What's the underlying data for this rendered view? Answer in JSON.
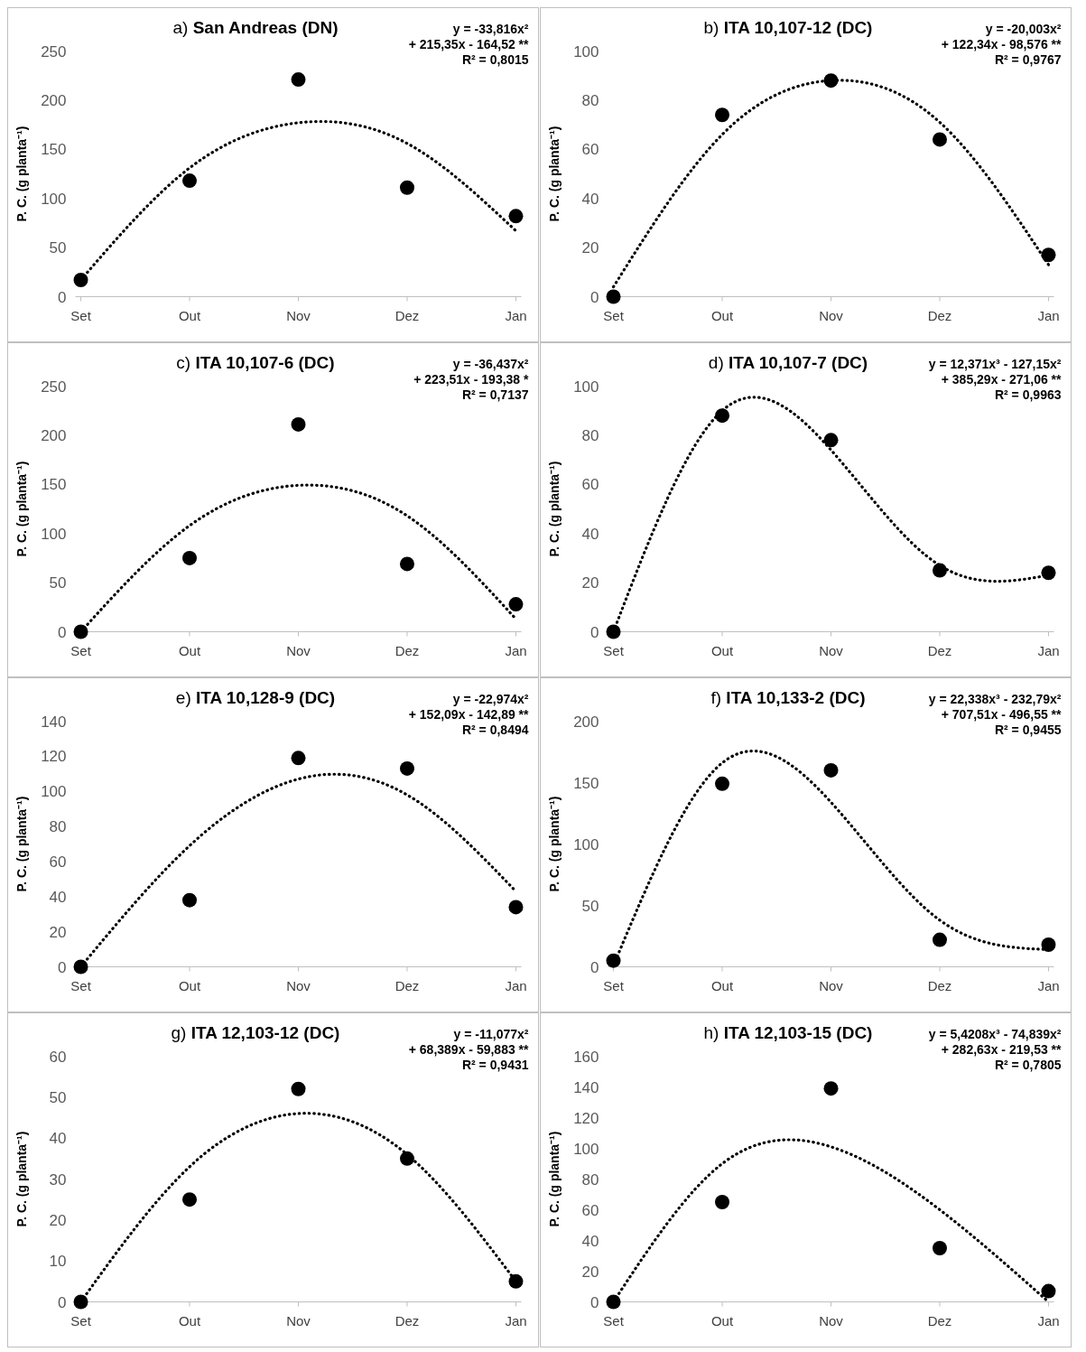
{
  "chart_data": [
    {
      "type": "scatter",
      "title": "a) San Andreas (DN)",
      "ylabel": "P. C. (g planta⁻¹)",
      "categories": [
        "Set",
        "Out",
        "Nov",
        "Dez",
        "Jan"
      ],
      "ylim": [
        0,
        250
      ],
      "yticks": [
        0,
        50,
        100,
        150,
        200,
        250
      ],
      "marker": "circle",
      "annotations": [
        "y = -33,816x²",
        "+ 215,35x - 164,52 **",
        "R² = 0,8015"
      ],
      "series": [
        {
          "type": "scatter",
          "color": "#000000",
          "values": [
            17,
            118,
            221,
            111,
            82
          ]
        },
        {
          "type": "line",
          "color": "#000000",
          "line_style": "dotted",
          "marker": "none",
          "values": [
            17,
            131,
            177,
            156,
            67
          ]
        }
      ]
    },
    {
      "type": "scatter",
      "title": "b) ITA 10,107-12 (DC)",
      "ylabel": "P. C. (g planta⁻¹)",
      "categories": [
        "Set",
        "Out",
        "Nov",
        "Dez",
        "Jan"
      ],
      "ylim": [
        0,
        100
      ],
      "yticks": [
        0,
        20,
        40,
        60,
        80,
        100
      ],
      "marker": "circle",
      "annotations": [
        "y = -20,003x²",
        "+ 122,34x - 98,576 **",
        "R² = 0,9767"
      ],
      "series": [
        {
          "type": "scatter",
          "color": "#000000",
          "values": [
            0,
            74,
            88,
            64,
            17
          ]
        },
        {
          "type": "line",
          "color": "#000000",
          "line_style": "dotted",
          "marker": "none",
          "values": [
            4,
            66,
            88,
            71,
            13
          ]
        }
      ]
    },
    {
      "type": "scatter",
      "title": "c) ITA 10,107-6 (DC)",
      "ylabel": "P. C. (g planta⁻¹)",
      "categories": [
        "Set",
        "Out",
        "Nov",
        "Dez",
        "Jan"
      ],
      "ylim": [
        0,
        250
      ],
      "yticks": [
        0,
        50,
        100,
        150,
        200,
        250
      ],
      "marker": "circle",
      "annotations": [
        "y = -36,437x²",
        "+ 223,51x - 193,38 *",
        "R² = 0,7137"
      ],
      "series": [
        {
          "type": "scatter",
          "color": "#000000",
          "values": [
            0,
            75,
            211,
            69,
            28
          ]
        },
        {
          "type": "line",
          "color": "#000000",
          "line_style": "dotted",
          "marker": "none",
          "values": [
            0,
            108,
            149,
            118,
            13
          ]
        }
      ]
    },
    {
      "type": "scatter",
      "title": "d) ITA 10,107-7 (DC)",
      "ylabel": "P. C. (g planta⁻¹)",
      "categories": [
        "Set",
        "Out",
        "Nov",
        "Dez",
        "Jan"
      ],
      "ylim": [
        0,
        100
      ],
      "yticks": [
        0,
        20,
        40,
        60,
        80,
        100
      ],
      "marker": "circle",
      "annotations": [
        "y = 12,371x³ - 127,15x²",
        "+ 385,29x - 271,06 **",
        "R² = 0,9963"
      ],
      "series": [
        {
          "type": "scatter",
          "color": "#000000",
          "values": [
            0,
            88,
            78,
            25,
            24
          ]
        },
        {
          "type": "line",
          "color": "#000000",
          "line_style": "dotted",
          "marker": "none",
          "values": [
            0,
            90,
            74,
            27,
            23
          ]
        }
      ]
    },
    {
      "type": "scatter",
      "title": "e) ITA 10,128-9 (DC)",
      "ylabel": "P. C. (g planta⁻¹)",
      "categories": [
        "Set",
        "Out",
        "Nov",
        "Dez",
        "Jan"
      ],
      "ylim": [
        0,
        140
      ],
      "yticks": [
        0,
        20,
        40,
        60,
        80,
        100,
        120,
        140
      ],
      "marker": "circle",
      "annotations": [
        "y = -22,974x²",
        "+ 152,09x - 142,89 **",
        "R² = 0,8494"
      ],
      "series": [
        {
          "type": "scatter",
          "color": "#000000",
          "values": [
            0,
            38,
            119,
            113,
            34
          ]
        },
        {
          "type": "line",
          "color": "#000000",
          "line_style": "dotted",
          "marker": "none",
          "values": [
            0,
            69,
            107,
            98,
            43
          ]
        }
      ]
    },
    {
      "type": "scatter",
      "title": "f) ITA 10,133-2 (DC)",
      "ylabel": "P. C. (g planta⁻¹)",
      "categories": [
        "Set",
        "Out",
        "Nov",
        "Dez",
        "Jan"
      ],
      "ylim": [
        0,
        200
      ],
      "yticks": [
        0,
        50,
        100,
        150,
        200
      ],
      "marker": "circle",
      "annotations": [
        "y = 22,338x³ - 232,79x²",
        "+ 707,51x - 496,55 **",
        "R² = 0,9455"
      ],
      "series": [
        {
          "type": "scatter",
          "color": "#000000",
          "values": [
            5,
            149,
            160,
            22,
            18
          ]
        },
        {
          "type": "line",
          "color": "#000000",
          "line_style": "dotted",
          "marker": "none",
          "values": [
            1,
            166,
            134,
            38,
            14
          ]
        }
      ]
    },
    {
      "type": "scatter",
      "title": "g) ITA 12,103-12 (DC)",
      "ylabel": "P. C. (g planta⁻¹)",
      "categories": [
        "Set",
        "Out",
        "Nov",
        "Dez",
        "Jan"
      ],
      "ylim": [
        0,
        60
      ],
      "yticks": [
        0,
        10,
        20,
        30,
        40,
        50,
        60
      ],
      "marker": "circle",
      "annotations": [
        "y = -11,077x²",
        "+ 68,389x - 59,883 **",
        "R² = 0,9431"
      ],
      "series": [
        {
          "type": "scatter",
          "color": "#000000",
          "values": [
            0,
            25,
            52,
            35,
            5
          ]
        },
        {
          "type": "line",
          "color": "#000000",
          "line_style": "dotted",
          "marker": "none",
          "values": [
            0,
            33,
            46,
            36,
            5
          ]
        }
      ]
    },
    {
      "type": "scatter",
      "title": "h) ITA 12,103-15 (DC)",
      "ylabel": "P. C. (g planta⁻¹)",
      "categories": [
        "Set",
        "Out",
        "Nov",
        "Dez",
        "Jan"
      ],
      "ylim": [
        0,
        160
      ],
      "yticks": [
        0,
        20,
        40,
        60,
        80,
        100,
        120,
        140,
        160
      ],
      "marker": "circle",
      "annotations": [
        "y = 5,4208x³ - 74,839x²",
        "+ 282,63x - 219,53 **",
        "R² = 0,7805"
      ],
      "series": [
        {
          "type": "scatter",
          "color": "#000000",
          "values": [
            0,
            65,
            139,
            35,
            7
          ]
        },
        {
          "type": "line",
          "color": "#000000",
          "line_style": "dotted",
          "marker": "none",
          "values": [
            0,
            90,
            101,
            60,
            0
          ]
        }
      ]
    }
  ]
}
